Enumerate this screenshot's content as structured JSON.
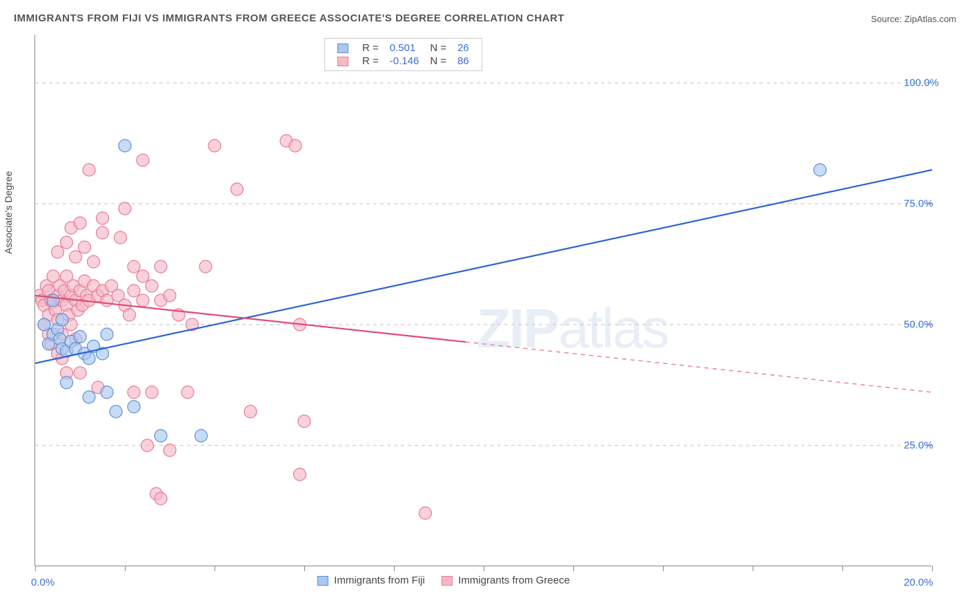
{
  "title": "IMMIGRANTS FROM FIJI VS IMMIGRANTS FROM GREECE ASSOCIATE'S DEGREE CORRELATION CHART",
  "source": "Source: ZipAtlas.com",
  "watermark_a": "ZIP",
  "watermark_b": "atlas",
  "y_axis_label": "Associate's Degree",
  "chart": {
    "type": "scatter",
    "background_color": "#ffffff",
    "grid_color": "#cccccc",
    "axis_color": "#888888",
    "text_color": "#555555",
    "value_color": "#3b6fd4",
    "xlim": [
      0.0,
      20.0
    ],
    "ylim": [
      0.0,
      110.0
    ],
    "x_ticks": [
      0.0,
      20.0
    ],
    "x_tick_labels": [
      "0.0%",
      "20.0%"
    ],
    "y_ticks": [
      25.0,
      50.0,
      75.0,
      100.0
    ],
    "y_tick_labels": [
      "25.0%",
      "50.0%",
      "75.0%",
      "100.0%"
    ],
    "marker_radius": 9,
    "marker_stroke_width": 1.2,
    "trend_line_width": 2.2,
    "series": [
      {
        "name": "Immigrants from Fiji",
        "color_fill": "#a9c7ef",
        "color_stroke": "#5c8fd8",
        "r_label": "R =",
        "r_value": "0.501",
        "n_label": "N =",
        "n_value": "26",
        "points": [
          [
            0.2,
            50.0
          ],
          [
            0.3,
            46.0
          ],
          [
            0.4,
            48.0
          ],
          [
            0.5,
            49.0
          ],
          [
            0.55,
            47.0
          ],
          [
            0.6,
            45.0
          ],
          [
            0.7,
            44.5
          ],
          [
            0.8,
            46.5
          ],
          [
            0.9,
            45.0
          ],
          [
            1.0,
            47.5
          ],
          [
            1.1,
            44.0
          ],
          [
            1.2,
            43.0
          ],
          [
            1.3,
            45.5
          ],
          [
            1.5,
            44.0
          ],
          [
            1.6,
            48.0
          ],
          [
            0.7,
            38.0
          ],
          [
            1.2,
            35.0
          ],
          [
            1.6,
            36.0
          ],
          [
            1.8,
            32.0
          ],
          [
            2.2,
            33.0
          ],
          [
            2.8,
            27.0
          ],
          [
            3.7,
            27.0
          ],
          [
            2.0,
            87.0
          ],
          [
            17.5,
            82.0
          ],
          [
            0.4,
            55.0
          ],
          [
            0.6,
            51.0
          ]
        ],
        "trend_y_at_xmin": 42.0,
        "trend_y_at_xmax": 82.0,
        "trend_solid": true
      },
      {
        "name": "Immigrants from Greece",
        "color_fill": "#f5b9c6",
        "color_stroke": "#e77a97",
        "r_label": "R =",
        "r_value": "-0.146",
        "n_label": "N =",
        "n_value": "86",
        "points": [
          [
            0.1,
            56.0
          ],
          [
            0.15,
            55.0
          ],
          [
            0.2,
            54.0
          ],
          [
            0.2,
            50.0
          ],
          [
            0.25,
            58.0
          ],
          [
            0.3,
            52.0
          ],
          [
            0.3,
            57.0
          ],
          [
            0.35,
            55.0
          ],
          [
            0.4,
            54.5
          ],
          [
            0.4,
            60.0
          ],
          [
            0.45,
            53.0
          ],
          [
            0.5,
            56.0
          ],
          [
            0.5,
            51.0
          ],
          [
            0.55,
            58.0
          ],
          [
            0.6,
            55.0
          ],
          [
            0.6,
            48.0
          ],
          [
            0.65,
            57.0
          ],
          [
            0.7,
            54.0
          ],
          [
            0.7,
            60.0
          ],
          [
            0.75,
            52.0
          ],
          [
            0.8,
            56.0
          ],
          [
            0.8,
            50.0
          ],
          [
            0.85,
            58.0
          ],
          [
            0.9,
            55.0
          ],
          [
            0.95,
            53.0
          ],
          [
            1.0,
            57.0
          ],
          [
            1.05,
            54.0
          ],
          [
            1.1,
            59.0
          ],
          [
            1.15,
            56.0
          ],
          [
            1.2,
            55.0
          ],
          [
            1.3,
            58.0
          ],
          [
            1.4,
            56.0
          ],
          [
            1.5,
            57.0
          ],
          [
            1.6,
            55.0
          ],
          [
            1.7,
            58.0
          ],
          [
            1.85,
            56.0
          ],
          [
            2.0,
            54.0
          ],
          [
            2.1,
            52.0
          ],
          [
            2.2,
            57.0
          ],
          [
            2.4,
            55.0
          ],
          [
            0.5,
            65.0
          ],
          [
            0.7,
            67.0
          ],
          [
            0.9,
            64.0
          ],
          [
            1.1,
            66.0
          ],
          [
            1.3,
            63.0
          ],
          [
            1.5,
            69.0
          ],
          [
            1.5,
            72.0
          ],
          [
            0.8,
            70.0
          ],
          [
            1.0,
            71.0
          ],
          [
            1.9,
            68.0
          ],
          [
            2.0,
            74.0
          ],
          [
            2.2,
            62.0
          ],
          [
            2.4,
            60.0
          ],
          [
            2.6,
            58.0
          ],
          [
            2.8,
            55.0
          ],
          [
            3.0,
            56.0
          ],
          [
            3.2,
            52.0
          ],
          [
            3.5,
            50.0
          ],
          [
            1.2,
            82.0
          ],
          [
            2.4,
            84.0
          ],
          [
            4.0,
            87.0
          ],
          [
            5.6,
            88.0
          ],
          [
            5.8,
            87.0
          ],
          [
            4.5,
            78.0
          ],
          [
            2.8,
            62.0
          ],
          [
            3.8,
            62.0
          ],
          [
            0.7,
            40.0
          ],
          [
            1.0,
            40.0
          ],
          [
            1.4,
            37.0
          ],
          [
            2.2,
            36.0
          ],
          [
            2.6,
            36.0
          ],
          [
            3.4,
            36.0
          ],
          [
            4.8,
            32.0
          ],
          [
            6.0,
            30.0
          ],
          [
            5.9,
            50.0
          ],
          [
            2.7,
            15.0
          ],
          [
            2.8,
            14.0
          ],
          [
            2.5,
            25.0
          ],
          [
            3.0,
            24.0
          ],
          [
            5.9,
            19.0
          ],
          [
            8.7,
            11.0
          ],
          [
            0.3,
            48.0
          ],
          [
            0.35,
            46.0
          ],
          [
            0.5,
            44.0
          ],
          [
            0.6,
            43.0
          ],
          [
            0.9,
            47.0
          ]
        ],
        "trend_y_at_xmin": 56.0,
        "trend_y_at_half": 46.0,
        "trend_y_at_xmax": 36.0,
        "trend_solid_until": 0.48
      }
    ]
  },
  "legend_top": {
    "border_color": "#cccccc"
  },
  "legend_bottom": {
    "items": [
      {
        "label": "Immigrants from Fiji",
        "fill": "#a9c7ef",
        "stroke": "#5c8fd8"
      },
      {
        "label": "Immigrants from Greece",
        "fill": "#f5b9c6",
        "stroke": "#e77a97"
      }
    ]
  }
}
